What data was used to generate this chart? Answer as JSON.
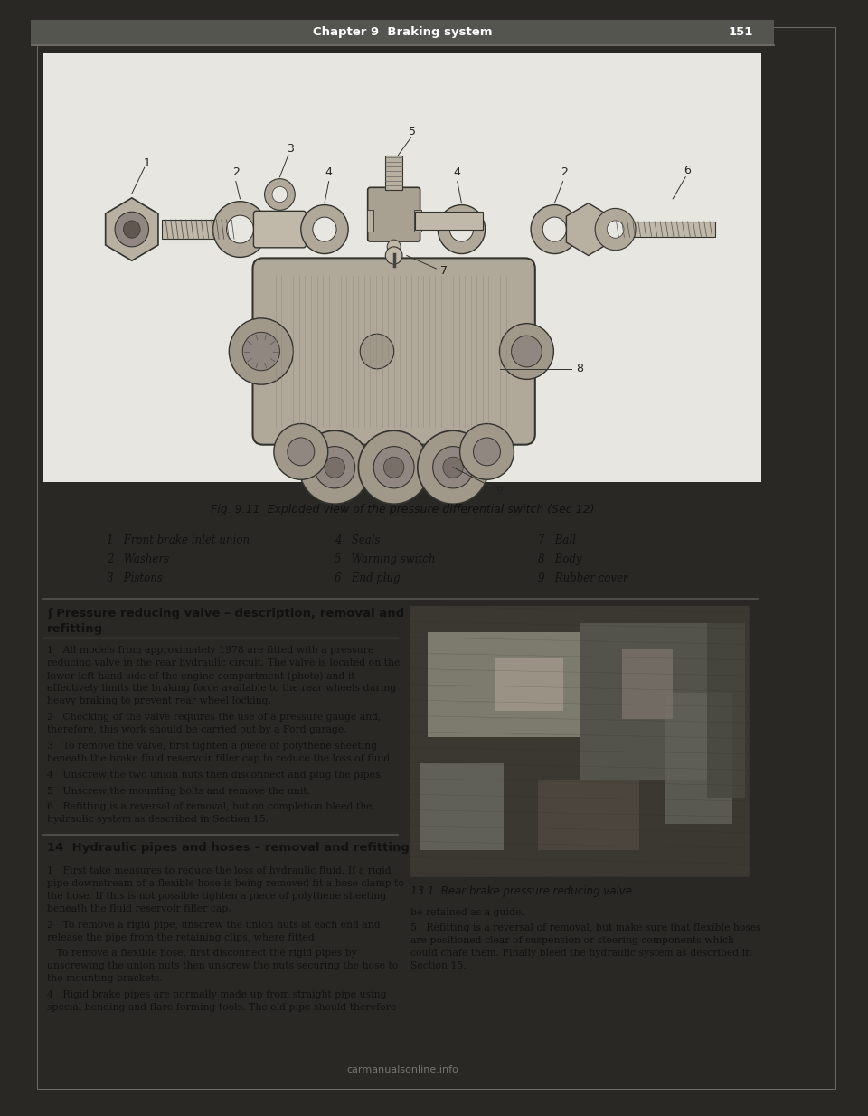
{
  "outer_bg": "#2a2825",
  "page_bg": "#ccc8c0",
  "content_bg": "#dedad2",
  "white_area": "#e8e6e0",
  "header_text": "Chapter 9  Braking system",
  "header_page": "151",
  "header_bg": "#444444",
  "header_text_color": "#ffffff",
  "figure_caption": "Fig. 9.11  Exploded view of the pressure differential switch (Sec 12)",
  "legend": [
    [
      "1   Front brake inlet union",
      "4   Seals",
      "7   Ball"
    ],
    [
      "2   Washers",
      "5   Warning switch",
      "8   Body"
    ],
    [
      "3   Pistons",
      "6   End plug",
      "9   Rubber cover"
    ]
  ],
  "section_title": "ʃ Pressure reducing valve – description, removal and\nrefitting",
  "section14_title": "14  Hydraulic pipes and hoses – removal and refitting",
  "body_left_para1": "1   All models from approximately 1978 are fitted with a pressure\nreducing valve in the rear hydraulic circuit. The valve is located on the\nlower left-hand side of the engine compartment (photo) and it\neffectively limits the braking force available to the rear wheels during\nheavy braking to prevent rear wheel locking.",
  "body_left_para2": "2   Checking of the valve requires the use of a pressure gauge and,\ntherefore, this work should be carried out by a Ford garage.",
  "body_left_para3": "3   To remove the valve, first tighten a piece of polythene sheeting\nbeneath the brake fluid reservoir filler cap to reduce the loss of fluid.",
  "body_left_para4": "4   Unscrew the two union nuts then disconnect and plug the pipes.",
  "body_left_para5": "5   Unscrew the mounting bolts and remove the unit.",
  "body_left_para6": "6   Refitting is a reversal of removal, but on completion bleed the\nhydraulic system as described in Section 15.",
  "body_left2_para1": "1   First take measures to reduce the loss of hydraulic fluid. If a rigid\npipe downstream of a flexible hose is being removed fit a hose clamp to\nthe hose. If this is not possible tighten a piece of polythene sheeting\nbeneath the fluid reservoir filler cap.",
  "body_left2_para2": "2   To remove a rigid pipe, unscrew the union nuts at each end and\nrelease the pipe from the retaining clips, where fitted.",
  "body_left2_para3": "   To remove a flexible hose, first disconnect the rigid pipes by\nunscrewing the union nuts then unscrew the nuts securing the hose to\nthe mounting brackets.",
  "body_left2_para4": "4   Rigid brake pipes are normally made up from straight pipe using\nspecial bending and flare-forming tools. The old pipe should therefore",
  "body_right_para1": "be retained as a guide.",
  "body_right_para2": "5   Refitting is a reversal of removal, but make sure that flexible hoses\nare positioned clear of suspension or steering components which\ncould chafe them. Finally bleed the hydraulic system as described in\nSection 15.",
  "photo_caption": "13.1  Rear brake pressure reducing valve",
  "watermark": "carmanualsonline.info"
}
